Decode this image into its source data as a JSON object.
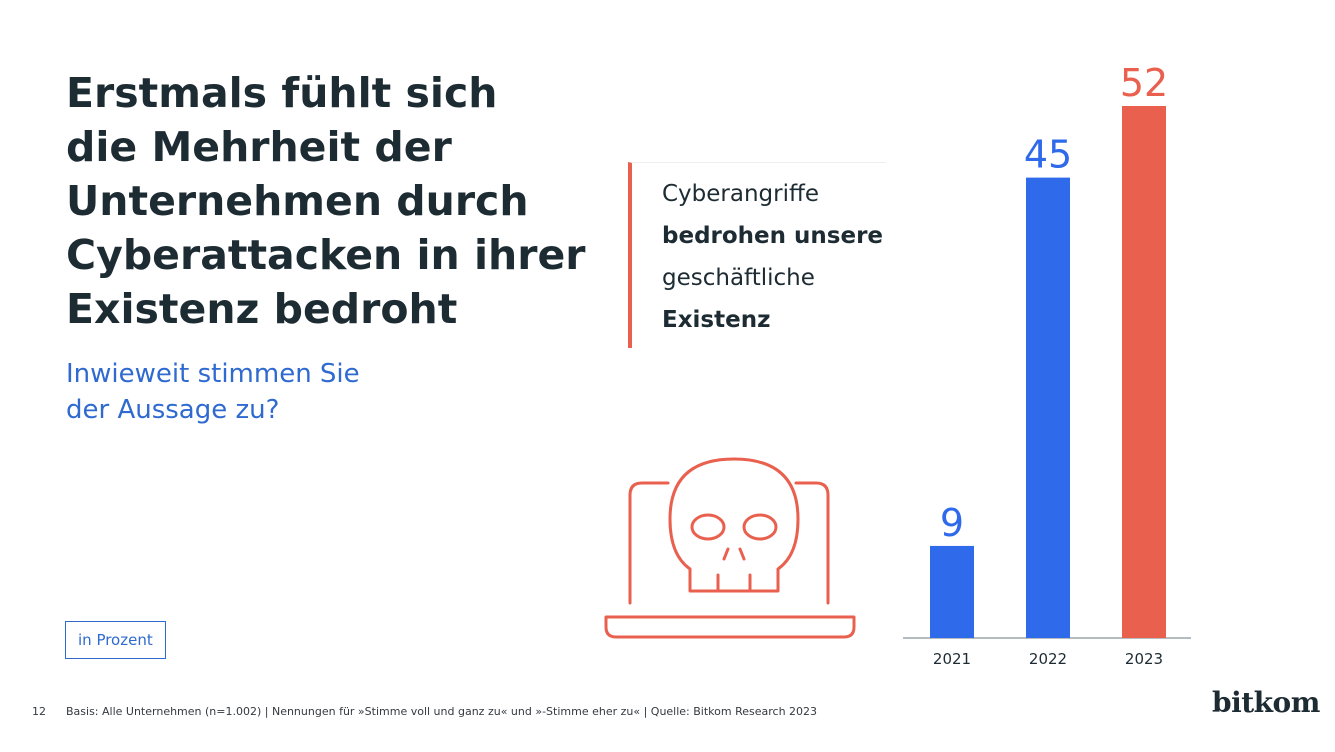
{
  "title_lines": [
    "Erstmals fühlt sich",
    "die Mehrheit der",
    "Unternehmen durch",
    "Cyberattacken in ihrer",
    "Existenz bedroht"
  ],
  "subtitle_lines": [
    "Inwieweit stimmen Sie",
    "der Aussage zu?"
  ],
  "statement": {
    "line1": "Cyberangriffe",
    "line2": "bedrohen unsere",
    "line3": "geschäftliche",
    "line4": "Existenz"
  },
  "unit_label": "in Prozent",
  "footer": {
    "page_number": "12",
    "basis": "Basis: Alle Unternehmen (n=1.002) | Nennungen für »Stimme voll und ganz zu« und »-Stimme eher zu« | Quelle: Bitkom Research 2023"
  },
  "logo_text": "bitkom",
  "icons": {
    "illustration": "laptop-skull-icon"
  },
  "chart_data": {
    "type": "bar",
    "categories": [
      "2021",
      "2022",
      "2023"
    ],
    "values": [
      9,
      45,
      52
    ],
    "colors": [
      "#2f6aea",
      "#2f6aea",
      "#e9604e"
    ],
    "ylim": [
      0,
      52
    ],
    "grid": false
  }
}
